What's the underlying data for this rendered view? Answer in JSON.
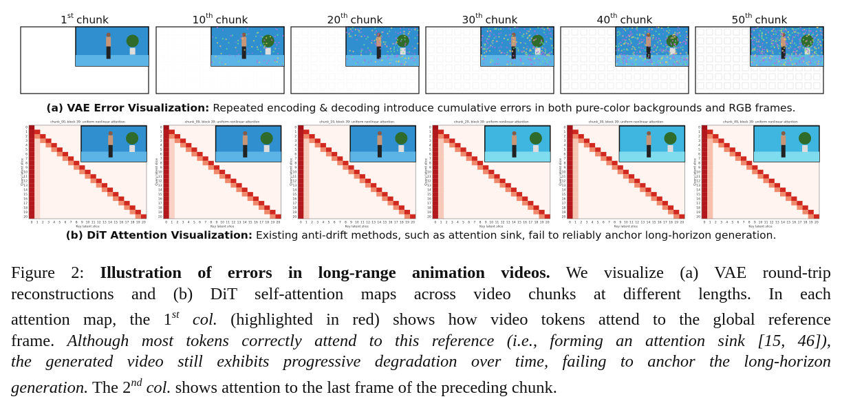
{
  "vae_panels": [
    {
      "n": "1",
      "sup": "st",
      "rest": "chunk"
    },
    {
      "n": "10",
      "sup": "th",
      "rest": "chunk"
    },
    {
      "n": "20",
      "sup": "th",
      "rest": "chunk"
    },
    {
      "n": "30",
      "sup": "th",
      "rest": "chunk"
    },
    {
      "n": "40",
      "sup": "th",
      "rest": "chunk"
    },
    {
      "n": "50",
      "sup": "th",
      "rest": "chunk"
    }
  ],
  "vae_caption": {
    "bold": "(a) VAE Error Visualization:",
    "text": "Repeated encoding & decoding introduce cumulative errors in both pure-color backgrounds and RGB frames."
  },
  "attention_panels": [
    {
      "title": "chunk_00, block 39: uniform nonlinear attention"
    },
    {
      "title": "chunk_09, block 39: uniform nonlinear attention"
    },
    {
      "title": "chunk_19, block 39: uniform nonlinear attention"
    },
    {
      "title": "chunk_29, block 39: uniform nonlinear attention"
    },
    {
      "title": "chunk_39, block 39: uniform nonlinear attention"
    },
    {
      "title": "chunk_49, block 39: uniform nonlinear attention"
    }
  ],
  "attention_xlabel": "Key latent slice",
  "attention_ylabel": "Query latent slice",
  "attention_ticks": [
    0,
    1,
    2,
    3,
    4,
    5,
    6,
    7,
    8,
    9,
    10,
    11,
    12,
    13,
    14,
    15,
    16,
    17,
    18,
    19,
    20
  ],
  "dit_caption": {
    "bold": "(b) DiT Attention Visualization:",
    "text": "Existing anti-drift methods, such as attention sink, fail to reliably anchor long-horizon generation."
  },
  "caption": {
    "lines": [
      [
        {
          "text": "Figure 2: ",
          "style": "normal"
        },
        {
          "text": "Illustration of errors in long-range animation videos.",
          "style": "bold"
        },
        {
          "text": " We visualize (a) VAE round-trip",
          "style": "normal"
        }
      ],
      [
        {
          "text": "reconstructions and (b) DiT self-attention maps across video chunks at different lengths. In each",
          "style": "normal"
        }
      ],
      [
        {
          "text": "attention map, the 1",
          "style": "normal"
        },
        {
          "text": "st",
          "style": "sup"
        },
        {
          "text": " col.",
          "style": "italic"
        },
        {
          "text": " (highlighted in red) shows how video tokens attend to the global reference",
          "style": "normal"
        }
      ],
      [
        {
          "text": "frame. ",
          "style": "normal"
        },
        {
          "text": "Although most tokens correctly attend to this reference (i.e., forming an attention sink [15, 46]),",
          "style": "italic"
        }
      ],
      [
        {
          "text": "the generated video still exhibits progressive degradation over time, failing to anchor the long-horizon",
          "style": "italic"
        }
      ],
      [
        {
          "text": "generation.",
          "style": "italic"
        },
        {
          "text": " The 2",
          "style": "normal"
        },
        {
          "text": "nd",
          "style": "sup"
        },
        {
          "text": " col.",
          "style": "italic"
        },
        {
          "text": " shows attention to the last frame of the preceding chunk.",
          "style": "normal"
        }
      ]
    ]
  }
}
